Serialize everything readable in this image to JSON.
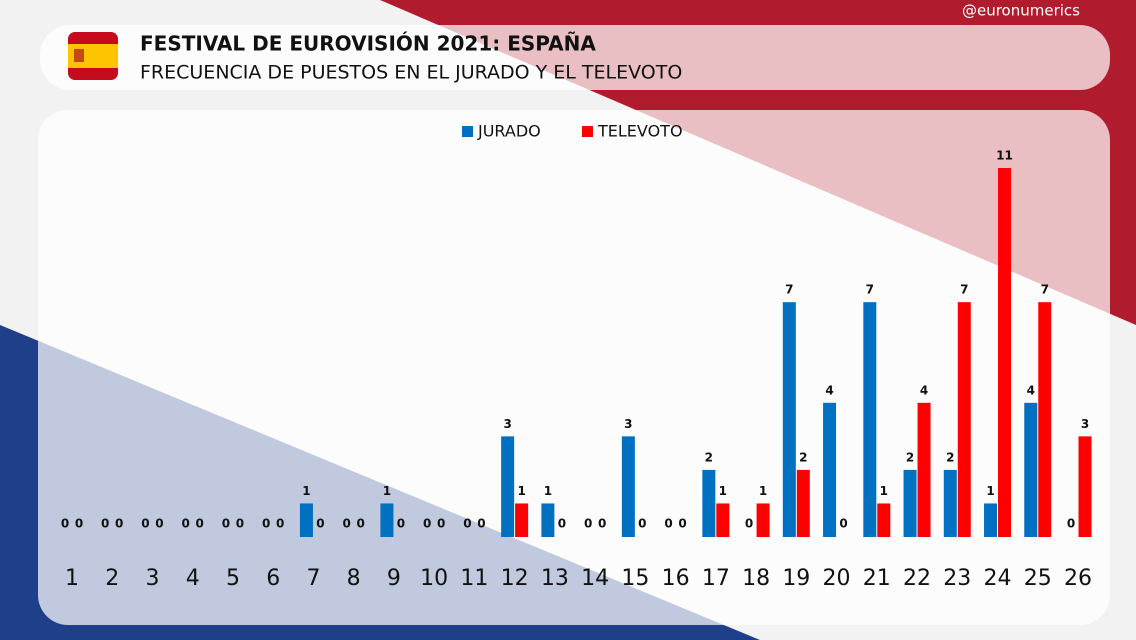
{
  "chart_data": {
    "type": "bar",
    "title": "FESTIVAL DE EUROVISIÓN 2021: ESPAÑA",
    "subtitle": "FRECUENCIA DE PUESTOS EN EL JURADO Y EL TELEVOTO",
    "credit": "@euronumerics",
    "categories": [
      1,
      2,
      3,
      4,
      5,
      6,
      7,
      8,
      9,
      10,
      11,
      12,
      13,
      14,
      15,
      16,
      17,
      18,
      19,
      20,
      21,
      22,
      23,
      24,
      25,
      26
    ],
    "series": [
      {
        "name": "JURADO",
        "color": "#0070c0",
        "values": [
          0,
          0,
          0,
          0,
          0,
          0,
          1,
          0,
          1,
          0,
          0,
          3,
          1,
          0,
          3,
          0,
          2,
          0,
          7,
          4,
          7,
          2,
          2,
          1,
          4,
          0
        ]
      },
      {
        "name": "TELEVOTO",
        "color": "#ff0000",
        "values": [
          0,
          0,
          0,
          0,
          0,
          0,
          0,
          0,
          0,
          0,
          0,
          1,
          0,
          0,
          0,
          0,
          1,
          1,
          2,
          0,
          1,
          4,
          7,
          11,
          7,
          3
        ]
      }
    ],
    "legend": "top"
  }
}
